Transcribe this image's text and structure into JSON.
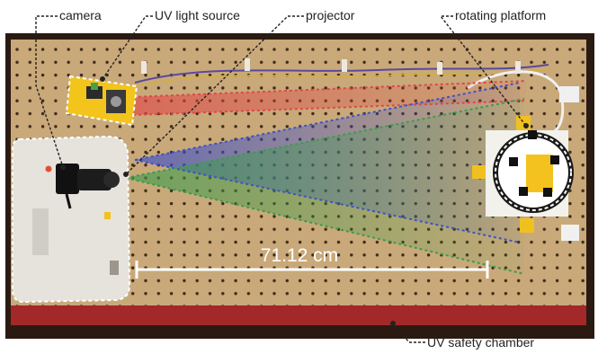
{
  "labels": {
    "camera": "camera",
    "uv_light_source": "UV light source",
    "projector": "projector",
    "rotating_platform": "rotating platform",
    "uv_safety_chamber": "UV safety chamber"
  },
  "measurement": "71.12 cm",
  "colors": {
    "pegboard": "#c9a97a",
    "frame": "#2a1a12",
    "floor_red": "#a3282a",
    "beam_red": "#e04848",
    "beam_blue": "#3f52c8",
    "beam_green": "#3c9c4c",
    "uv_board": "#f2c41c",
    "annotation_line": "#222222",
    "dashed_outline": "#ffffff"
  }
}
